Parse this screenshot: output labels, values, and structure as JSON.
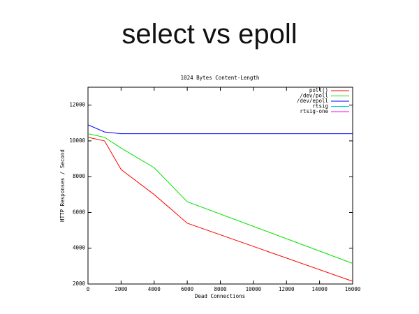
{
  "slide_title": "select vs epoll",
  "chart_data": {
    "type": "line",
    "title": "1024 Bytes Content-Length",
    "x_label": "Dead Connections",
    "y_label": "HTTP Responses / Second",
    "x": [
      0,
      1000,
      2000,
      4000,
      6000,
      16000
    ],
    "series": [
      {
        "name": "poll()",
        "color": "#ff0000",
        "values": [
          10200,
          10000,
          8400,
          7000,
          5400,
          2150
        ]
      },
      {
        "name": "/dev/poll",
        "color": "#00e000",
        "values": [
          10400,
          10200,
          9600,
          8500,
          6600,
          3150
        ]
      },
      {
        "name": "/dev/epoll",
        "color": "#0000ff",
        "values": [
          10900,
          10500,
          10400,
          10400,
          10400,
          10400
        ]
      },
      {
        "name": "rtsig",
        "color": "#00d0d0",
        "values": [
          null,
          null,
          null,
          null,
          null,
          null
        ]
      },
      {
        "name": "rtsig-one",
        "color": "#ff00ff",
        "values": [
          null,
          null,
          null,
          null,
          null,
          null
        ]
      }
    ],
    "xlim": [
      0,
      16000
    ],
    "xticks": [
      0,
      2000,
      4000,
      6000,
      8000,
      10000,
      12000,
      14000,
      16000
    ],
    "ylim": [
      2000,
      13000
    ],
    "yticks": [
      2000,
      4000,
      6000,
      8000,
      10000,
      12000
    ],
    "legend": "top-right",
    "grid": false
  }
}
